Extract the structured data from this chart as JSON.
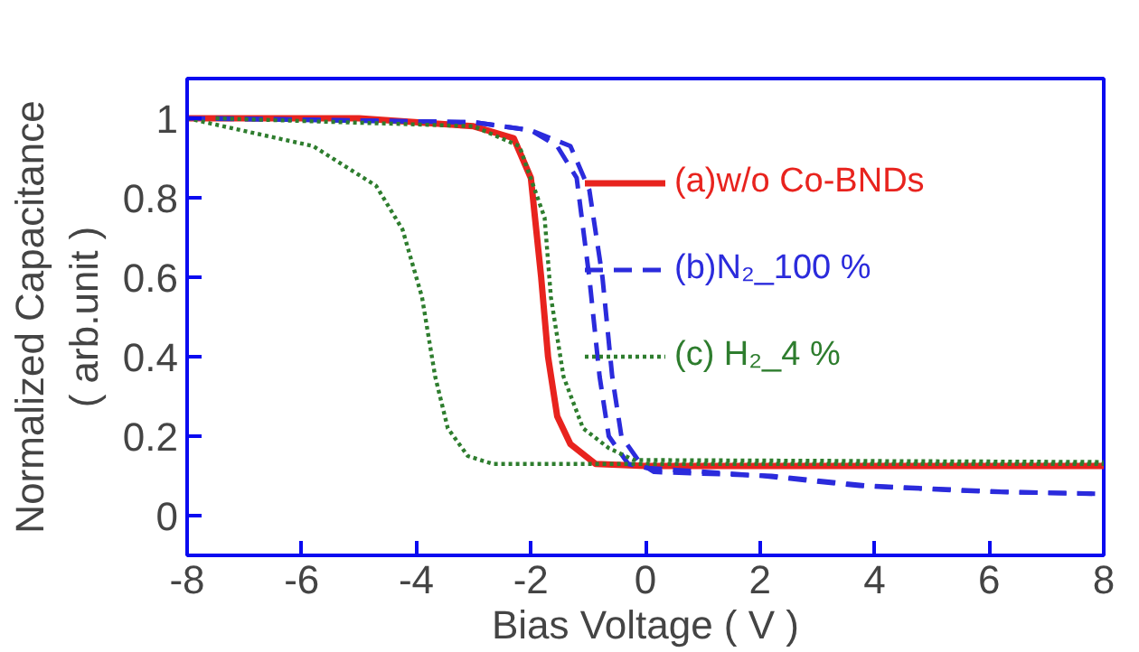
{
  "chart_data": {
    "type": "line",
    "xlabel": "Bias Voltage ( V )",
    "ylabel": "Normalized Capacitance\n( arb.unit )",
    "xlim": [
      -8,
      8
    ],
    "ylim": [
      -0.1,
      1.1
    ],
    "xticks": [
      -8,
      -6,
      -4,
      -2,
      0,
      2,
      4,
      6,
      8
    ],
    "yticks": [
      0,
      0.2,
      0.4,
      0.6,
      0.8,
      1
    ],
    "grid": false,
    "legend": "top right",
    "series": [
      {
        "name": "(a)w/o Co-BNDs",
        "color": "#e8231e",
        "line_style": "solid",
        "x": [
          -8,
          -5,
          -3,
          -2.3,
          -2.0,
          -1.82,
          -1.7,
          -1.54,
          -1.31,
          -0.87,
          0,
          8
        ],
        "values": [
          1,
          1,
          0.98,
          0.95,
          0.85,
          0.6,
          0.4,
          0.25,
          0.18,
          0.13,
          0.125,
          0.125
        ]
      },
      {
        "name": "(b)N₂_100 %",
        "color": "#2b2bdc",
        "line_style": "dashed",
        "x": [
          -8,
          -3,
          -2,
          -1.54,
          -1.2,
          -0.98,
          -0.8,
          -0.64,
          -0.3,
          0.03,
          2.05,
          3.74,
          6,
          8
        ],
        "values": [
          1,
          0.99,
          0.97,
          0.93,
          0.85,
          0.6,
          0.35,
          0.2,
          0.13,
          0.12,
          0.1,
          0.075,
          0.06,
          0.055
        ]
      },
      {
        "name": "(c) H₂_4 %",
        "color": "#2e7d2e",
        "line_style": "dotted",
        "x": [
          -8,
          -5.8,
          -4.7,
          -4.24,
          -3.9,
          -3.67,
          -3.45,
          -3.1,
          -2.66,
          8
        ],
        "values": [
          1,
          0.93,
          0.83,
          0.72,
          0.55,
          0.35,
          0.22,
          0.15,
          0.13,
          0.13
        ]
      },
      {
        "color": "#2b2bdc",
        "line_style": "dashed",
        "x": [
          -7.5,
          -3,
          -2,
          -1.31,
          -0.98,
          -0.75,
          -0.58,
          -0.42,
          -0.08,
          0.15,
          2.2,
          3.9,
          6.2,
          7.8
        ],
        "values": [
          1,
          0.99,
          0.97,
          0.93,
          0.82,
          0.6,
          0.35,
          0.2,
          0.13,
          0.11,
          0.1,
          0.075,
          0.06,
          0.055
        ]
      },
      {
        "color": "#2e7d2e",
        "line_style": "dotted",
        "x": [
          -7.5,
          -3,
          -2.2,
          -1.76,
          -1.65,
          -1.43,
          -1.09,
          -0.64,
          -0.2,
          8
        ],
        "values": [
          1,
          0.98,
          0.93,
          0.75,
          0.55,
          0.35,
          0.22,
          0.17,
          0.14,
          0.135
        ]
      }
    ]
  }
}
